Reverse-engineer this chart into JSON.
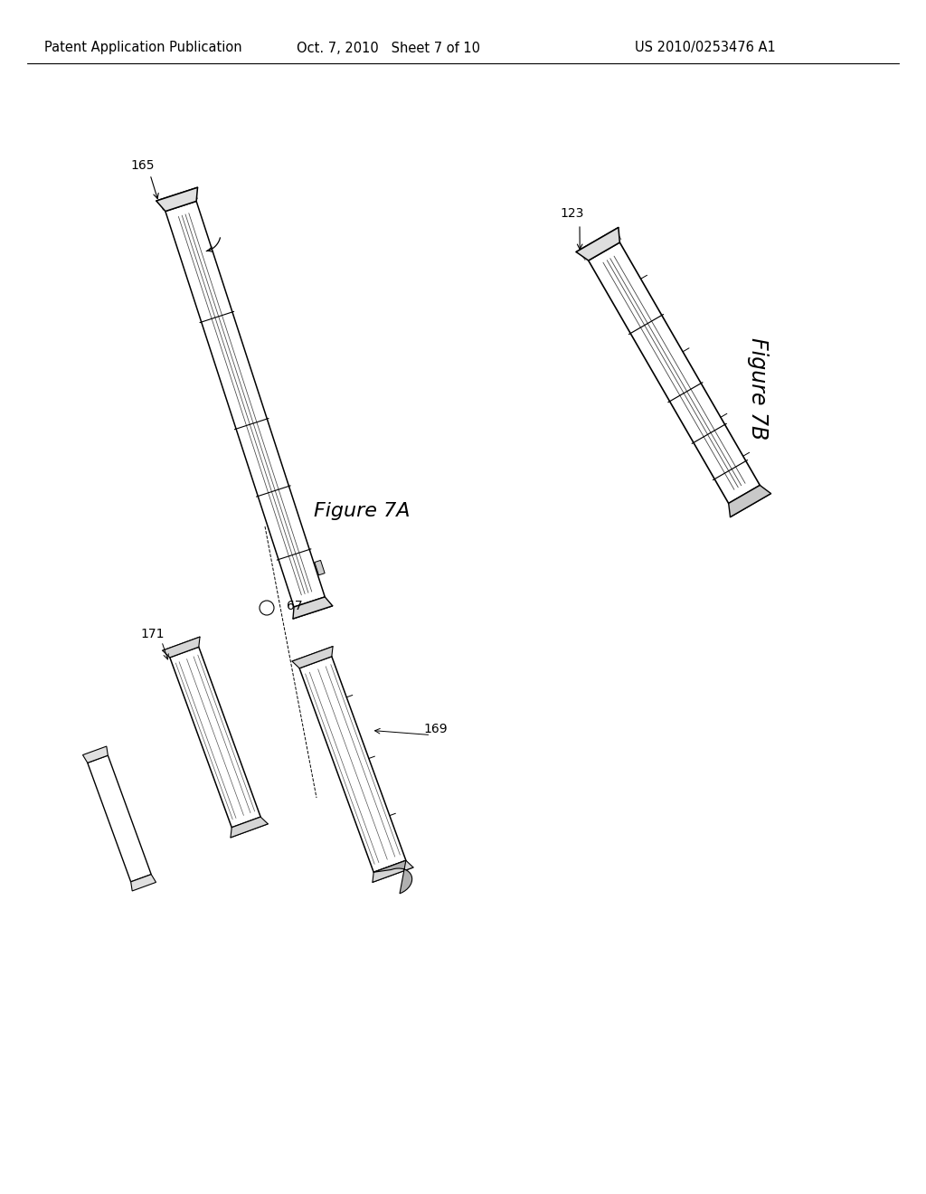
{
  "background_color": "#ffffff",
  "header_left": "Patent Application Publication",
  "header_center": "Oct. 7, 2010   Sheet 7 of 10",
  "header_right": "US 2010/0253476 A1",
  "fig7a_label": "Figure 7A",
  "fig7b_label": "Figure 7B",
  "label_165": "165",
  "label_123": "123",
  "label_67": "67",
  "label_171": "171",
  "label_169": "169"
}
